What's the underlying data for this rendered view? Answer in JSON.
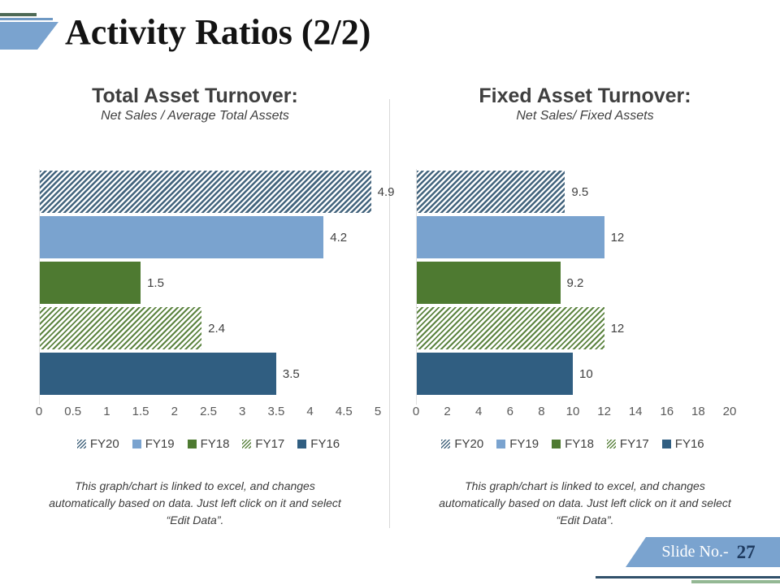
{
  "slide": {
    "title": "Activity Ratios (2/2)",
    "footer": {
      "slide_no_label": "Slide No.-",
      "slide_no": "27"
    },
    "colors": {
      "accent_blue": "#7aa3cf",
      "accent_green_dark": "#4e6a56",
      "footer_navy_line": "#31516b",
      "footer_green_line": "#94b894",
      "bar_light_blue": "#7aa3cf",
      "bar_green": "#4e7a31",
      "bar_dark_blue": "#305e81",
      "hatch_blue_stripe": "#44657e",
      "hatch_green_stripe": "#5c8440",
      "title_text": "#131313",
      "chart_text": "#3f3f3f",
      "axis_text": "#595959"
    }
  },
  "chart_data": [
    {
      "type": "bar",
      "orientation": "horizontal",
      "title": "Total Asset Turnover:",
      "subtitle": "Net Sales / Average Total Assets",
      "categories": [
        "FY20",
        "FY19",
        "FY18",
        "FY17",
        "FY16"
      ],
      "values": [
        4.9,
        4.2,
        1.5,
        2.4,
        3.5
      ],
      "data_labels": [
        "4.9",
        "4.2",
        "1.5",
        "2.4",
        "3.5"
      ],
      "xlim": [
        0,
        5
      ],
      "x_ticks": [
        "0",
        "0.5",
        "1",
        "1.5",
        "2",
        "2.5",
        "3",
        "3.5",
        "4",
        "4.5",
        "5"
      ],
      "bar_styles": [
        "hatch-blue",
        "solid-lightblue",
        "solid-green",
        "hatch-green",
        "solid-darkblue"
      ],
      "legend_position": "bottom",
      "grid": false,
      "note_lines": [
        "This graph/chart is linked to excel, and changes",
        "automatically based on data. Just left click on it and select",
        "“Edit Data”."
      ]
    },
    {
      "type": "bar",
      "orientation": "horizontal",
      "title": "Fixed Asset Turnover:",
      "subtitle": "Net Sales/ Fixed Assets",
      "categories": [
        "FY20",
        "FY19",
        "FY18",
        "FY17",
        "FY16"
      ],
      "values": [
        9.5,
        12,
        9.2,
        12,
        10
      ],
      "data_labels": [
        "9.5",
        "12",
        "9.2",
        "12",
        "10"
      ],
      "xlim": [
        0,
        20
      ],
      "x_ticks": [
        "0",
        "2",
        "4",
        "6",
        "8",
        "10",
        "12",
        "14",
        "16",
        "18",
        "20"
      ],
      "bar_styles": [
        "hatch-blue",
        "solid-lightblue",
        "solid-green",
        "hatch-green",
        "solid-darkblue"
      ],
      "legend_position": "bottom",
      "grid": false,
      "note_lines": [
        "This graph/chart is linked to excel, and changes",
        "automatically based on data. Just left click on it and select",
        "“Edit Data”."
      ]
    }
  ]
}
